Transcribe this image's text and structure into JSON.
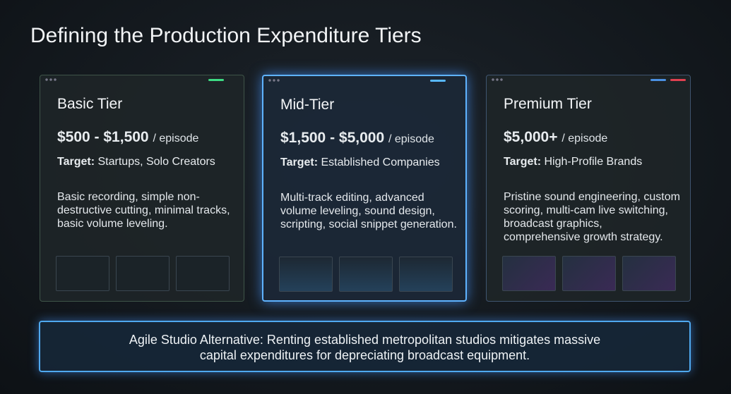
{
  "header": {
    "title": "Defining the Production Expenditure Tiers"
  },
  "tiers": [
    {
      "name": "Basic Tier",
      "price": "$500 - $1,500",
      "unit": "/ episode",
      "target_label": "Target:",
      "target": "Startups, Solo Creators",
      "description": "Basic recording, simple non-destructive cutting, minimal tracks, basic volume leveling."
    },
    {
      "name": "Mid-Tier",
      "price": "$1,500 - $5,000",
      "unit": "/ episode",
      "target_label": "Target:",
      "target": "Established Companies",
      "description": "Multi-track editing, advanced volume leveling, sound design, scripting, social snippet generation."
    },
    {
      "name": "Premium Tier",
      "price": "$5,000+",
      "unit": "/ episode",
      "target_label": "Target:",
      "target": "High-Profile Brands",
      "description": "Pristine sound engineering, custom scoring, multi-cam live switching, broadcast graphics, comprehensive growth strategy."
    }
  ],
  "footer": {
    "text": "Agile Studio Alternative: Renting established metropolitan studios mitigates massive capital expenditures for depreciating broadcast equipment."
  }
}
